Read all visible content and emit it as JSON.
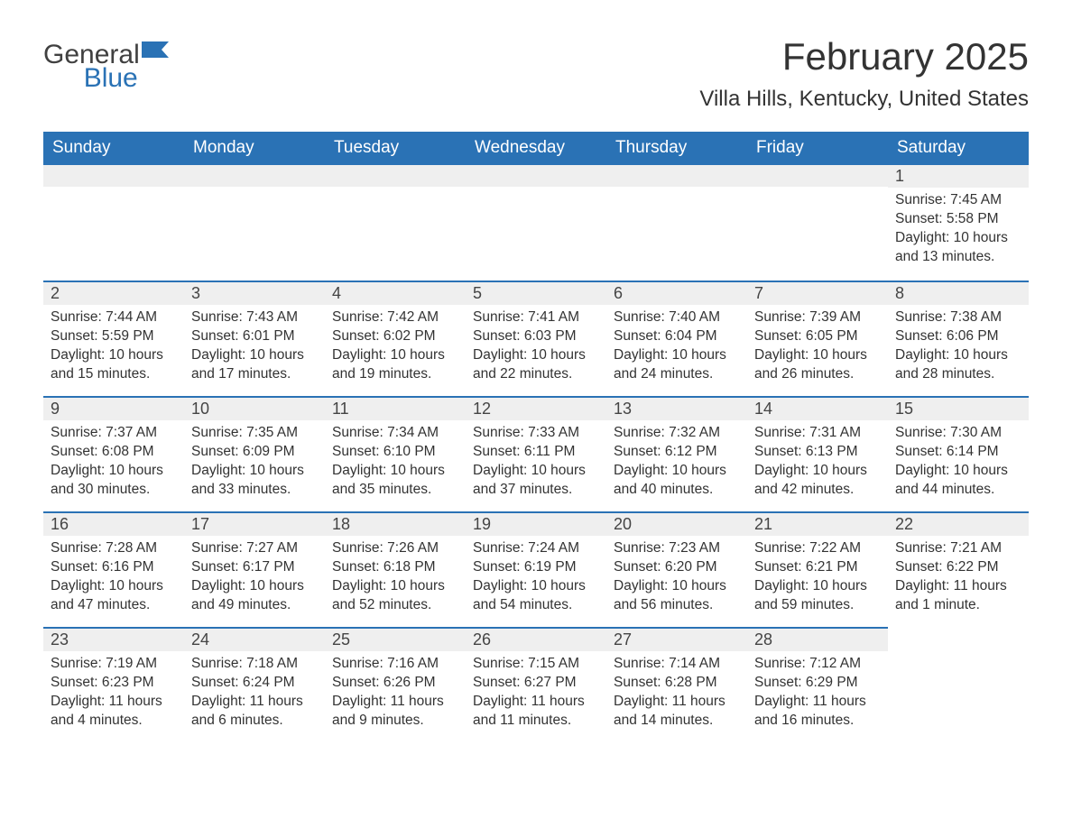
{
  "logo": {
    "word1": "General",
    "word2": "Blue",
    "accent_color": "#2a72b5",
    "text_color": "#404040"
  },
  "title": "February 2025",
  "location": "Villa Hills, Kentucky, United States",
  "colors": {
    "header_bg": "#2a72b5",
    "header_text": "#ffffff",
    "day_strip_bg": "#efefef",
    "day_border": "#2a72b5",
    "body_text": "#333333",
    "page_bg": "#ffffff"
  },
  "typography": {
    "title_fontsize": 42,
    "location_fontsize": 24,
    "header_fontsize": 19,
    "daynum_fontsize": 18,
    "body_fontsize": 15.5
  },
  "weekdays": [
    "Sunday",
    "Monday",
    "Tuesday",
    "Wednesday",
    "Thursday",
    "Friday",
    "Saturday"
  ],
  "first_day_index": 6,
  "days": [
    {
      "n": 1,
      "sunrise": "7:45 AM",
      "sunset": "5:58 PM",
      "daylight": "10 hours and 13 minutes."
    },
    {
      "n": 2,
      "sunrise": "7:44 AM",
      "sunset": "5:59 PM",
      "daylight": "10 hours and 15 minutes."
    },
    {
      "n": 3,
      "sunrise": "7:43 AM",
      "sunset": "6:01 PM",
      "daylight": "10 hours and 17 minutes."
    },
    {
      "n": 4,
      "sunrise": "7:42 AM",
      "sunset": "6:02 PM",
      "daylight": "10 hours and 19 minutes."
    },
    {
      "n": 5,
      "sunrise": "7:41 AM",
      "sunset": "6:03 PM",
      "daylight": "10 hours and 22 minutes."
    },
    {
      "n": 6,
      "sunrise": "7:40 AM",
      "sunset": "6:04 PM",
      "daylight": "10 hours and 24 minutes."
    },
    {
      "n": 7,
      "sunrise": "7:39 AM",
      "sunset": "6:05 PM",
      "daylight": "10 hours and 26 minutes."
    },
    {
      "n": 8,
      "sunrise": "7:38 AM",
      "sunset": "6:06 PM",
      "daylight": "10 hours and 28 minutes."
    },
    {
      "n": 9,
      "sunrise": "7:37 AM",
      "sunset": "6:08 PM",
      "daylight": "10 hours and 30 minutes."
    },
    {
      "n": 10,
      "sunrise": "7:35 AM",
      "sunset": "6:09 PM",
      "daylight": "10 hours and 33 minutes."
    },
    {
      "n": 11,
      "sunrise": "7:34 AM",
      "sunset": "6:10 PM",
      "daylight": "10 hours and 35 minutes."
    },
    {
      "n": 12,
      "sunrise": "7:33 AM",
      "sunset": "6:11 PM",
      "daylight": "10 hours and 37 minutes."
    },
    {
      "n": 13,
      "sunrise": "7:32 AM",
      "sunset": "6:12 PM",
      "daylight": "10 hours and 40 minutes."
    },
    {
      "n": 14,
      "sunrise": "7:31 AM",
      "sunset": "6:13 PM",
      "daylight": "10 hours and 42 minutes."
    },
    {
      "n": 15,
      "sunrise": "7:30 AM",
      "sunset": "6:14 PM",
      "daylight": "10 hours and 44 minutes."
    },
    {
      "n": 16,
      "sunrise": "7:28 AM",
      "sunset": "6:16 PM",
      "daylight": "10 hours and 47 minutes."
    },
    {
      "n": 17,
      "sunrise": "7:27 AM",
      "sunset": "6:17 PM",
      "daylight": "10 hours and 49 minutes."
    },
    {
      "n": 18,
      "sunrise": "7:26 AM",
      "sunset": "6:18 PM",
      "daylight": "10 hours and 52 minutes."
    },
    {
      "n": 19,
      "sunrise": "7:24 AM",
      "sunset": "6:19 PM",
      "daylight": "10 hours and 54 minutes."
    },
    {
      "n": 20,
      "sunrise": "7:23 AM",
      "sunset": "6:20 PM",
      "daylight": "10 hours and 56 minutes."
    },
    {
      "n": 21,
      "sunrise": "7:22 AM",
      "sunset": "6:21 PM",
      "daylight": "10 hours and 59 minutes."
    },
    {
      "n": 22,
      "sunrise": "7:21 AM",
      "sunset": "6:22 PM",
      "daylight": "11 hours and 1 minute."
    },
    {
      "n": 23,
      "sunrise": "7:19 AM",
      "sunset": "6:23 PM",
      "daylight": "11 hours and 4 minutes."
    },
    {
      "n": 24,
      "sunrise": "7:18 AM",
      "sunset": "6:24 PM",
      "daylight": "11 hours and 6 minutes."
    },
    {
      "n": 25,
      "sunrise": "7:16 AM",
      "sunset": "6:26 PM",
      "daylight": "11 hours and 9 minutes."
    },
    {
      "n": 26,
      "sunrise": "7:15 AM",
      "sunset": "6:27 PM",
      "daylight": "11 hours and 11 minutes."
    },
    {
      "n": 27,
      "sunrise": "7:14 AM",
      "sunset": "6:28 PM",
      "daylight": "11 hours and 14 minutes."
    },
    {
      "n": 28,
      "sunrise": "7:12 AM",
      "sunset": "6:29 PM",
      "daylight": "11 hours and 16 minutes."
    }
  ],
  "labels": {
    "sunrise": "Sunrise: ",
    "sunset": "Sunset: ",
    "daylight": "Daylight: "
  }
}
